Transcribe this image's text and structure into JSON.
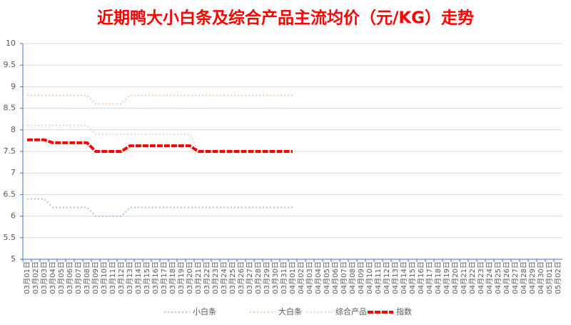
{
  "chart_data": {
    "type": "line",
    "title": "近期鸭大小白条及综合产品主流均价（元/KG）走势",
    "categories": [
      "03月01日",
      "03月02日",
      "03月03日",
      "03月04日",
      "03月05日",
      "03月06日",
      "03月07日",
      "03月08日",
      "03月09日",
      "03月10日",
      "03月11日",
      "03月12日",
      "03月13日",
      "03月14日",
      "03月15日",
      "03月16日",
      "03月17日",
      "03月18日",
      "03月19日",
      "03月20日",
      "03月21日",
      "03月22日",
      "03月23日",
      "03月24日",
      "03月25日",
      "03月26日",
      "03月27日",
      "03月28日",
      "03月29日",
      "03月30日",
      "03月31日",
      "04月01日",
      "04月02日",
      "04月03日",
      "04月04日",
      "04月05日",
      "04月06日",
      "04月07日",
      "04月08日",
      "04月09日",
      "04月10日",
      "04月11日",
      "04月12日",
      "04月13日",
      "04月14日",
      "04月15日",
      "04月16日",
      "04月17日",
      "04月18日",
      "04月19日",
      "04月20日",
      "04月21日",
      "04月22日",
      "04月23日",
      "04月24日",
      "04月25日",
      "04月26日",
      "04月27日",
      "04月28日",
      "04月29日",
      "04月30日",
      "05月01日",
      "05月02日"
    ],
    "series": [
      {
        "name": "小白条",
        "color": "#a9c4e8",
        "values": [
          6.4,
          6.4,
          6.4,
          6.2,
          6.2,
          6.2,
          6.2,
          6.2,
          6.0,
          6.0,
          6.0,
          6.0,
          6.2,
          6.2,
          6.2,
          6.2,
          6.2,
          6.2,
          6.2,
          6.2,
          6.2,
          6.2,
          6.2,
          6.2,
          6.2,
          6.2,
          6.2,
          6.2,
          6.2,
          6.2,
          6.2,
          6.2,
          null,
          null,
          null,
          null,
          null,
          null,
          null,
          null,
          null,
          null,
          null,
          null,
          null,
          null,
          null,
          null,
          null,
          null,
          null,
          null,
          null,
          null,
          null,
          null,
          null,
          null,
          null,
          null,
          null,
          null,
          null
        ]
      },
      {
        "name": "大白条",
        "color": "#f8cbad",
        "values": [
          8.8,
          8.8,
          8.8,
          8.8,
          8.8,
          8.8,
          8.8,
          8.8,
          8.6,
          8.6,
          8.6,
          8.6,
          8.8,
          8.8,
          8.8,
          8.8,
          8.8,
          8.8,
          8.8,
          8.8,
          8.8,
          8.8,
          8.8,
          8.8,
          8.8,
          8.8,
          8.8,
          8.8,
          8.8,
          8.8,
          8.8,
          8.8,
          null,
          null,
          null,
          null,
          null,
          null,
          null,
          null,
          null,
          null,
          null,
          null,
          null,
          null,
          null,
          null,
          null,
          null,
          null,
          null,
          null,
          null,
          null,
          null,
          null,
          null,
          null,
          null,
          null,
          null,
          null
        ]
      },
      {
        "name": "综合产品",
        "color": "#d6dbe6",
        "values": [
          8.1,
          8.1,
          8.1,
          8.1,
          8.1,
          8.1,
          8.1,
          8.1,
          7.9,
          7.9,
          7.9,
          7.9,
          7.9,
          7.9,
          7.9,
          7.9,
          7.9,
          7.9,
          7.9,
          7.9,
          7.5,
          7.5,
          7.5,
          7.5,
          7.5,
          7.5,
          7.5,
          7.5,
          7.5,
          7.5,
          7.5,
          7.5,
          null,
          null,
          null,
          null,
          null,
          null,
          null,
          null,
          null,
          null,
          null,
          null,
          null,
          null,
          null,
          null,
          null,
          null,
          null,
          null,
          null,
          null,
          null,
          null,
          null,
          null,
          null,
          null,
          null,
          null,
          null
        ]
      },
      {
        "name": "指数",
        "color": "#ff0000",
        "values": [
          7.77,
          7.77,
          7.77,
          7.7,
          7.7,
          7.7,
          7.7,
          7.7,
          7.5,
          7.5,
          7.5,
          7.5,
          7.63,
          7.63,
          7.63,
          7.63,
          7.63,
          7.63,
          7.63,
          7.63,
          7.5,
          7.5,
          7.5,
          7.5,
          7.5,
          7.5,
          7.5,
          7.5,
          7.5,
          7.5,
          7.5,
          7.5,
          null,
          null,
          null,
          null,
          null,
          null,
          null,
          null,
          null,
          null,
          null,
          null,
          null,
          null,
          null,
          null,
          null,
          null,
          null,
          null,
          null,
          null,
          null,
          null,
          null,
          null,
          null,
          null,
          null,
          null,
          null
        ]
      }
    ],
    "ylim": [
      5,
      10
    ],
    "yticks": [
      5,
      5.5,
      6,
      6.5,
      7,
      7.5,
      8,
      8.5,
      9,
      9.5,
      10
    ],
    "grid": true
  }
}
